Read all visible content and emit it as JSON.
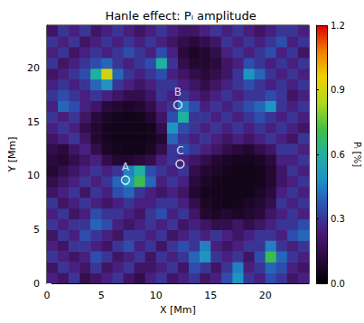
{
  "chart_data": {
    "type": "heatmap",
    "title": "Hanle effect: Pₗ amplitude",
    "x_label": "X [Mm]",
    "y_label": "Y [Mm]",
    "xlim": [
      0,
      24
    ],
    "ylim": [
      0,
      24
    ],
    "xticks": [
      0,
      5,
      10,
      15,
      20
    ],
    "yticks": [
      0,
      5,
      10,
      15,
      20
    ],
    "x": [
      0.5,
      1.5,
      2.5,
      3.5,
      4.5,
      5.5,
      6.5,
      7.5,
      8.5,
      9.5,
      10.5,
      11.5,
      12.5,
      13.5,
      14.5,
      15.5,
      16.5,
      17.5,
      18.5,
      19.5,
      20.5,
      21.5,
      22.5,
      23.5
    ],
    "y": [
      0.5,
      1.5,
      2.5,
      3.5,
      4.5,
      5.5,
      6.5,
      7.5,
      8.5,
      9.5,
      10.5,
      11.5,
      12.5,
      13.5,
      14.5,
      15.5,
      16.5,
      17.5,
      18.5,
      19.5,
      20.5,
      21.5,
      22.5,
      23.5
    ],
    "values": [
      [
        0.25,
        0.2,
        0.3,
        0.15,
        0.2,
        0.25,
        0.3,
        0.2,
        0.15,
        0.25,
        0.3,
        0.2,
        0.25,
        0.3,
        0.2,
        0.25,
        0.35,
        0.5,
        0.3,
        0.25,
        0.35,
        0.3,
        0.2,
        0.25
      ],
      [
        0.2,
        0.3,
        0.25,
        0.2,
        0.3,
        0.2,
        0.25,
        0.3,
        0.2,
        0.2,
        0.25,
        0.3,
        0.2,
        0.35,
        0.3,
        0.2,
        0.3,
        0.45,
        0.25,
        0.3,
        0.4,
        0.35,
        0.25,
        0.2
      ],
      [
        0.3,
        0.25,
        0.2,
        0.25,
        0.35,
        0.3,
        0.2,
        0.25,
        0.3,
        0.2,
        0.3,
        0.25,
        0.3,
        0.4,
        0.5,
        0.3,
        0.25,
        0.3,
        0.2,
        0.35,
        0.7,
        0.4,
        0.3,
        0.25
      ],
      [
        0.25,
        0.2,
        0.3,
        0.3,
        0.25,
        0.2,
        0.3,
        0.35,
        0.25,
        0.3,
        0.2,
        0.3,
        0.35,
        0.3,
        0.45,
        0.25,
        0.2,
        0.25,
        0.3,
        0.3,
        0.45,
        0.3,
        0.25,
        0.3
      ],
      [
        0.2,
        0.3,
        0.25,
        0.35,
        0.3,
        0.25,
        0.2,
        0.3,
        0.3,
        0.25,
        0.3,
        0.2,
        0.25,
        0.3,
        0.25,
        0.3,
        0.25,
        0.2,
        0.25,
        0.3,
        0.3,
        0.25,
        0.35,
        0.4
      ],
      [
        0.3,
        0.25,
        0.3,
        0.3,
        0.4,
        0.35,
        0.25,
        0.2,
        0.25,
        0.3,
        0.25,
        0.3,
        0.2,
        0.25,
        0.2,
        0.15,
        0.15,
        0.2,
        0.15,
        0.2,
        0.25,
        0.3,
        0.3,
        0.35
      ],
      [
        0.25,
        0.3,
        0.2,
        0.25,
        0.35,
        0.3,
        0.3,
        0.25,
        0.2,
        0.3,
        0.35,
        0.25,
        0.3,
        0.2,
        0.1,
        0.08,
        0.1,
        0.08,
        0.1,
        0.12,
        0.2,
        0.25,
        0.3,
        0.25
      ],
      [
        0.3,
        0.2,
        0.25,
        0.3,
        0.25,
        0.2,
        0.25,
        0.3,
        0.25,
        0.25,
        0.3,
        0.3,
        0.25,
        0.15,
        0.08,
        0.06,
        0.05,
        0.06,
        0.08,
        0.1,
        0.15,
        0.3,
        0.25,
        0.3
      ],
      [
        0.2,
        0.25,
        0.3,
        0.2,
        0.3,
        0.25,
        0.35,
        0.4,
        0.3,
        0.25,
        0.2,
        0.25,
        0.2,
        0.1,
        0.06,
        0.05,
        0.05,
        0.05,
        0.05,
        0.08,
        0.12,
        0.25,
        0.3,
        0.25
      ],
      [
        0.15,
        0.2,
        0.25,
        0.3,
        0.25,
        0.3,
        0.4,
        0.5,
        0.7,
        0.4,
        0.25,
        0.3,
        0.25,
        0.12,
        0.08,
        0.06,
        0.05,
        0.05,
        0.05,
        0.06,
        0.1,
        0.2,
        0.25,
        0.3
      ],
      [
        0.1,
        0.15,
        0.2,
        0.25,
        0.3,
        0.25,
        0.3,
        0.45,
        0.6,
        0.35,
        0.3,
        0.25,
        0.3,
        0.15,
        0.1,
        0.08,
        0.06,
        0.05,
        0.05,
        0.06,
        0.1,
        0.2,
        0.3,
        0.25
      ],
      [
        0.12,
        0.1,
        0.15,
        0.2,
        0.25,
        0.15,
        0.1,
        0.1,
        0.12,
        0.15,
        0.25,
        0.3,
        0.25,
        0.2,
        0.15,
        0.1,
        0.08,
        0.06,
        0.06,
        0.08,
        0.12,
        0.25,
        0.25,
        0.3
      ],
      [
        0.15,
        0.12,
        0.2,
        0.25,
        0.15,
        0.08,
        0.06,
        0.05,
        0.05,
        0.08,
        0.15,
        0.3,
        0.35,
        0.3,
        0.25,
        0.2,
        0.15,
        0.12,
        0.1,
        0.15,
        0.2,
        0.3,
        0.3,
        0.25
      ],
      [
        0.2,
        0.25,
        0.3,
        0.2,
        0.1,
        0.06,
        0.05,
        0.05,
        0.05,
        0.06,
        0.1,
        0.4,
        0.3,
        0.25,
        0.3,
        0.25,
        0.2,
        0.25,
        0.2,
        0.25,
        0.3,
        0.25,
        0.2,
        0.3
      ],
      [
        0.25,
        0.3,
        0.25,
        0.15,
        0.1,
        0.06,
        0.05,
        0.05,
        0.05,
        0.06,
        0.15,
        0.5,
        0.35,
        0.3,
        0.25,
        0.3,
        0.25,
        0.3,
        0.25,
        0.3,
        0.25,
        0.3,
        0.25,
        0.2
      ],
      [
        0.3,
        0.25,
        0.3,
        0.2,
        0.12,
        0.08,
        0.06,
        0.05,
        0.06,
        0.1,
        0.2,
        0.35,
        0.6,
        0.3,
        0.3,
        0.25,
        0.3,
        0.25,
        0.3,
        0.35,
        0.3,
        0.25,
        0.3,
        0.25
      ],
      [
        0.25,
        0.4,
        0.35,
        0.25,
        0.2,
        0.12,
        0.1,
        0.08,
        0.1,
        0.15,
        0.25,
        0.3,
        0.45,
        0.35,
        0.25,
        0.3,
        0.25,
        0.3,
        0.35,
        0.4,
        0.5,
        0.3,
        0.25,
        0.3
      ],
      [
        0.3,
        0.35,
        0.3,
        0.25,
        0.3,
        0.25,
        0.2,
        0.15,
        0.15,
        0.2,
        0.3,
        0.25,
        0.3,
        0.25,
        0.2,
        0.25,
        0.3,
        0.25,
        0.3,
        0.3,
        0.35,
        0.3,
        0.2,
        0.25
      ],
      [
        0.25,
        0.3,
        0.25,
        0.3,
        0.4,
        0.5,
        0.3,
        0.25,
        0.2,
        0.25,
        0.3,
        0.3,
        0.25,
        0.2,
        0.15,
        0.2,
        0.25,
        0.3,
        0.35,
        0.3,
        0.25,
        0.3,
        0.25,
        0.3
      ],
      [
        0.2,
        0.25,
        0.3,
        0.35,
        0.6,
        0.9,
        0.4,
        0.3,
        0.25,
        0.3,
        0.35,
        0.25,
        0.2,
        0.15,
        0.12,
        0.15,
        0.2,
        0.3,
        0.5,
        0.4,
        0.3,
        0.25,
        0.3,
        0.25
      ],
      [
        0.3,
        0.2,
        0.25,
        0.3,
        0.35,
        0.4,
        0.3,
        0.25,
        0.3,
        0.35,
        0.6,
        0.3,
        0.15,
        0.1,
        0.1,
        0.12,
        0.2,
        0.25,
        0.35,
        0.3,
        0.25,
        0.3,
        0.25,
        0.3
      ],
      [
        0.25,
        0.3,
        0.2,
        0.25,
        0.3,
        0.25,
        0.3,
        0.35,
        0.3,
        0.25,
        0.35,
        0.25,
        0.12,
        0.08,
        0.1,
        0.15,
        0.25,
        0.3,
        0.25,
        0.3,
        0.35,
        0.25,
        0.3,
        0.2
      ],
      [
        0.3,
        0.25,
        0.3,
        0.2,
        0.25,
        0.3,
        0.25,
        0.3,
        0.25,
        0.3,
        0.25,
        0.2,
        0.15,
        0.12,
        0.15,
        0.2,
        0.3,
        0.25,
        0.3,
        0.25,
        0.3,
        0.35,
        0.25,
        0.3
      ],
      [
        0.2,
        0.3,
        0.25,
        0.3,
        0.2,
        0.25,
        0.3,
        0.25,
        0.2,
        0.25,
        0.3,
        0.25,
        0.2,
        0.2,
        0.25,
        0.3,
        0.25,
        0.3,
        0.25,
        0.2,
        0.25,
        0.3,
        0.3,
        0.25
      ]
    ],
    "colorbar": {
      "label": "Pₗ [%]",
      "range": [
        0,
        1.2
      ],
      "ticks": [
        {
          "value": 0,
          "label": "0.0"
        },
        {
          "value": 0.3,
          "label": "0.3"
        },
        {
          "value": 0.6,
          "label": "0.6"
        },
        {
          "value": 0.9,
          "label": "0.9"
        },
        {
          "value": 1.2,
          "label": "1.2"
        }
      ]
    },
    "annotations": [
      {
        "label": "A",
        "x": 7.2,
        "y": 9.6
      },
      {
        "label": "B",
        "x": 12.0,
        "y": 16.6
      },
      {
        "label": "C",
        "x": 12.2,
        "y": 11.1
      }
    ]
  }
}
